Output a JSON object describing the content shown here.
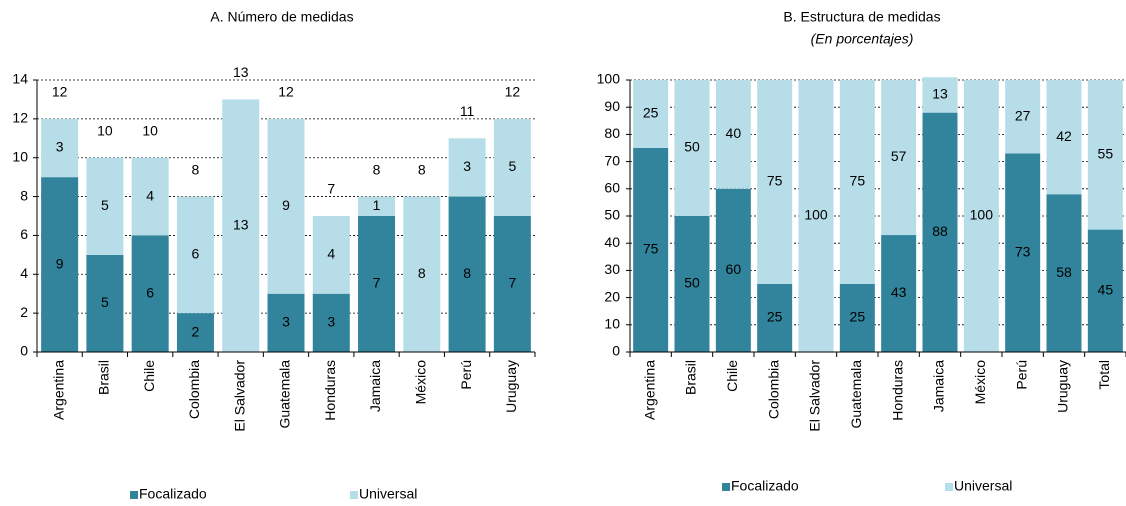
{
  "chart_data": [
    {
      "type": "stacked_bar",
      "title": "A. Número de medidas",
      "categories": [
        "Argentina",
        "Brasil",
        "Chile",
        "Colombia",
        "El Salvador",
        "Guatemala",
        "Honduras",
        "Jamaica",
        "México",
        "Perú",
        "Uruguay"
      ],
      "series": [
        {
          "name": "Focalizado",
          "color": "#31849b",
          "values": [
            9,
            5,
            6,
            2,
            null,
            3,
            3,
            7,
            null,
            8,
            7
          ]
        },
        {
          "name": "Universal",
          "color": "#b7dee8",
          "values": [
            3,
            5,
            4,
            6,
            13,
            9,
            4,
            1,
            8,
            3,
            5
          ]
        }
      ],
      "totals": [
        12,
        10,
        10,
        8,
        13,
        12,
        7,
        8,
        8,
        11,
        12
      ],
      "ylim": [
        0,
        14
      ],
      "yticks": [
        0,
        2,
        4,
        6,
        8,
        10,
        12,
        14
      ],
      "grid": true,
      "legend": "bottom"
    },
    {
      "type": "stacked_bar",
      "title": "B. Estructura de medidas",
      "subtitle": "(En porcentajes)",
      "categories": [
        "Argentina",
        "Brasil",
        "Chile",
        "Colombia",
        "El Salvador",
        "Guatemala",
        "Honduras",
        "Jamaica",
        "México",
        "Perú",
        "Uruguay",
        "Total"
      ],
      "series": [
        {
          "name": "Focalizado",
          "color": "#31849b",
          "values": [
            75,
            50,
            60,
            25,
            null,
            25,
            43,
            88,
            null,
            73,
            58,
            45
          ]
        },
        {
          "name": "Universal",
          "color": "#b7dee8",
          "values": [
            25,
            50,
            40,
            75,
            100,
            75,
            57,
            13,
            100,
            27,
            42,
            55
          ]
        }
      ],
      "ylim": [
        0,
        100
      ],
      "yticks": [
        0,
        10,
        20,
        30,
        40,
        50,
        60,
        70,
        80,
        90,
        100
      ],
      "grid": true,
      "legend": "bottom"
    }
  ]
}
